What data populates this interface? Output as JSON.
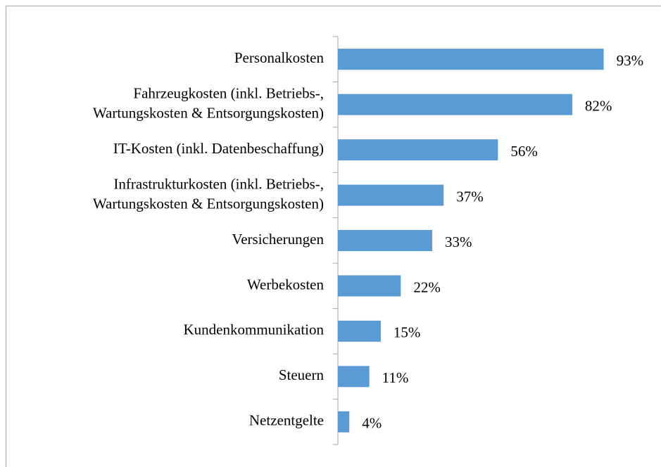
{
  "chart_data": {
    "type": "barh",
    "categories": [
      "Personalkosten",
      "Fahrzeugkosten (inkl. Betriebs-,\nWartungskosten & Entsorgungskosten)",
      "IT-Kosten (inkl. Datenbeschaffung)",
      "Infrastrukturkosten (inkl. Betriebs-,\nWartungskosten & Entsorgungskosten)",
      "Versicherungen",
      "Werbekosten",
      "Kundenkommunikation",
      "Steuern",
      "Netzentgelte"
    ],
    "values": [
      93,
      82,
      56,
      37,
      33,
      22,
      15,
      11,
      4
    ],
    "value_labels": [
      "93%",
      "82%",
      "56%",
      "37%",
      "33%",
      "22%",
      "15%",
      "11%",
      "4%"
    ],
    "color": "#5b9bd5",
    "xlim": [
      0,
      100
    ]
  }
}
